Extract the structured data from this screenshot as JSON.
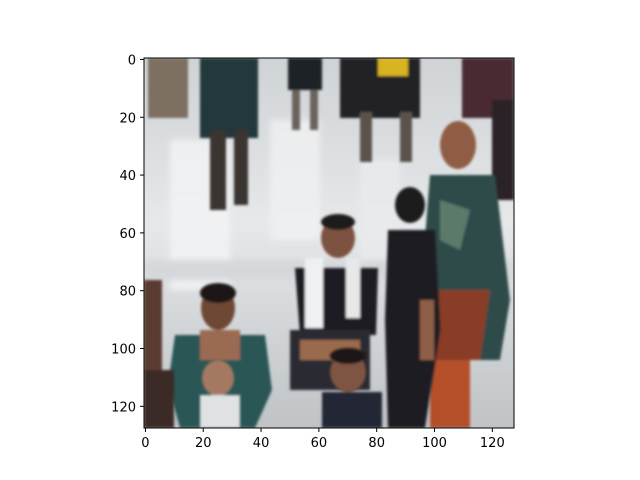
{
  "chart_data": {
    "type": "image",
    "title": "",
    "xlabel": "",
    "ylabel": "",
    "xlim": [
      -0.5,
      127.5
    ],
    "ylim": [
      127.5,
      -0.5
    ],
    "x_ticks": [
      0,
      20,
      40,
      60,
      80,
      100,
      120
    ],
    "y_ticks": [
      0,
      20,
      40,
      60,
      80,
      100,
      120
    ],
    "grid": false,
    "legend": "none",
    "image_description_colors": {
      "floor": "#d9dde0",
      "floor_reflection": "#eef0f2",
      "dark_clothing": "#1e2226",
      "teal_clothing": "#2e5a58",
      "skin": "#b07a5e",
      "red_clothing": "#9a3a22"
    }
  }
}
